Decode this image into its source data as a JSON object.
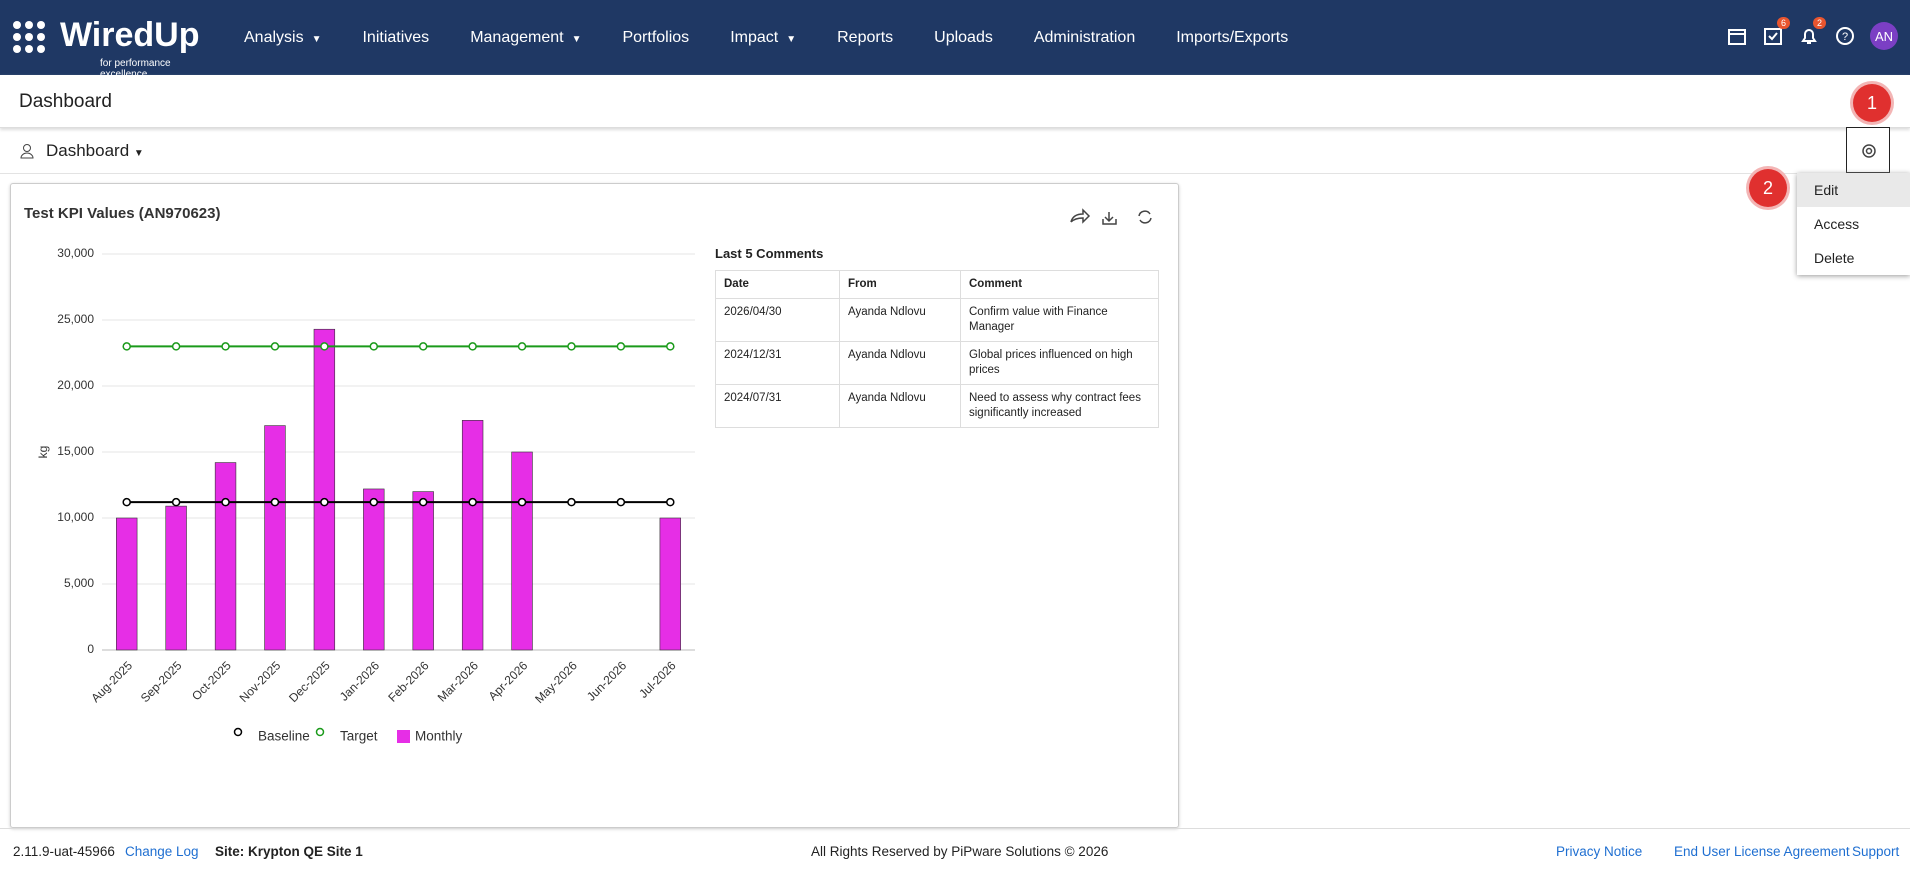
{
  "nav": {
    "logo": "WiredUp",
    "tagline": "for performance excellence",
    "items": [
      "Analysis",
      "Initiatives",
      "Management",
      "Portfolios",
      "Impact",
      "Reports",
      "Uploads",
      "Administration",
      "Imports/Exports"
    ],
    "badges": [
      "6",
      "2"
    ],
    "avatar": "AN"
  },
  "header": {
    "title": "Dashboard"
  },
  "toolbar": {
    "dashboard": "Dashboard"
  },
  "annotations": [
    "1",
    "2"
  ],
  "menu": [
    "Edit",
    "Access",
    "Delete"
  ],
  "widget": {
    "chart": {
      "type": "bar",
      "title": "Test KPI Values (AN970623)",
      "y_label": "kg",
      "categories": [
        "Aug-2025",
        "Sep-2025",
        "Oct-2025",
        "Nov-2025",
        "Dec-2025",
        "Jan-2026",
        "Feb-2026",
        "Mar-2026",
        "Apr-2026",
        "May-2026",
        "Jun-2026",
        "Jul-2026"
      ],
      "series": [
        {
          "name": "Baseline",
          "type": "line",
          "color": "#000000",
          "values": [
            11200,
            11200,
            11200,
            11200,
            11200,
            11200,
            11200,
            11200,
            11200,
            11200,
            11200,
            11200
          ]
        },
        {
          "name": "Target",
          "type": "line",
          "color": "#1a9a1a",
          "values": [
            23000,
            23000,
            23000,
            23000,
            23000,
            23000,
            23000,
            23000,
            23000,
            23000,
            23000,
            23000
          ]
        },
        {
          "name": "Monthly",
          "type": "bar",
          "color": "#e62ee6",
          "values": [
            10000,
            10900,
            14200,
            17000,
            24300,
            12200,
            12000,
            17400,
            15000,
            null,
            null,
            10000
          ]
        }
      ],
      "ylim": [
        0,
        30000
      ],
      "yticks": [
        0,
        {
          "value": 5000,
          "label": "5,000"
        },
        {
          "value": 10000,
          "label": "10,000"
        },
        {
          "value": 15000,
          "label": "15,000"
        },
        {
          "value": 20000,
          "label": "20,000"
        },
        {
          "value": 25000,
          "label": "25,000"
        },
        {
          "value": 30000,
          "label": "30,000"
        }
      ],
      "grid": true
    },
    "comments": {
      "title": "Last 5 Comments",
      "columns": [
        "Date",
        "From",
        "Comment"
      ],
      "rows": [
        [
          "2026/04/30",
          "Ayanda Ndlovu",
          "Confirm value with Finance Manager"
        ],
        [
          "2024/12/31",
          "Ayanda Ndlovu",
          "Global prices influenced on high prices"
        ],
        [
          "2024/07/31",
          "Ayanda Ndlovu",
          "Need to assess why contract fees significantly increased"
        ]
      ]
    }
  },
  "footer": {
    "version": "2.11.9-uat-45966",
    "change_log": "Change Log",
    "site": "Site: Krypton QE Site 1",
    "copyright": "All Rights Reserved by PiPware Solutions © 2026",
    "links": [
      "Privacy Notice",
      "End User License Agreement",
      "Support"
    ]
  }
}
